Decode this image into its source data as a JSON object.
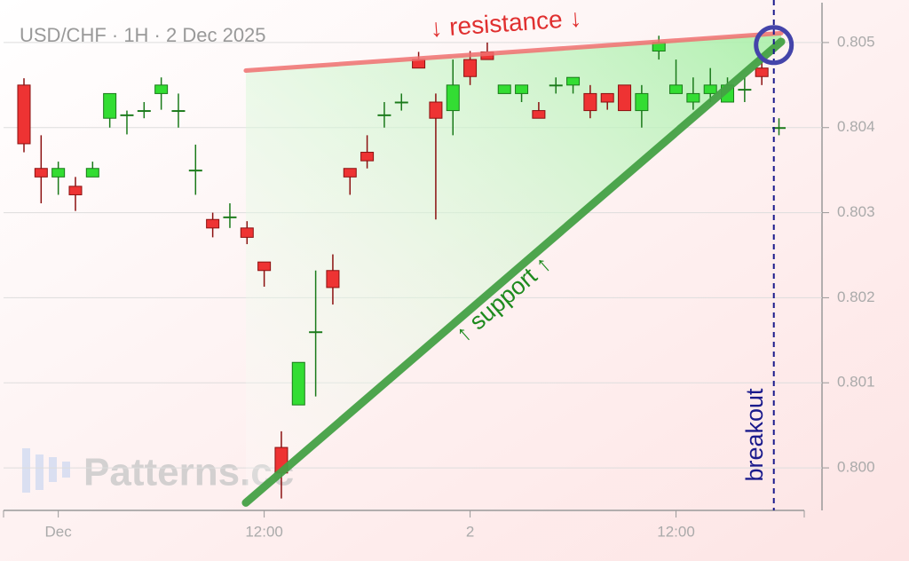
{
  "chart_data": {
    "type": "candlestick",
    "title": "USD/CHF · 1H · 2 Dec 2025",
    "watermark": "Patterns.cc",
    "categories": [
      null,
      null,
      "Dec",
      null,
      null,
      null,
      null,
      null,
      null,
      null,
      null,
      null,
      null,
      null,
      "12:00",
      null,
      null,
      null,
      null,
      null,
      null,
      null,
      null,
      null,
      null,
      null,
      "2",
      null,
      null,
      null,
      null,
      null,
      null,
      null,
      null,
      null,
      null,
      null,
      "12:00",
      null,
      null,
      null,
      null,
      null,
      null
    ],
    "open": [
      0.8045,
      0.80352,
      0.80342,
      0.80331,
      0.80342,
      0.80411,
      0.80414,
      0.80419,
      0.8044,
      0.80419,
      0.80349,
      0.80292,
      0.80294,
      0.80282,
      0.80242,
      0.80024,
      0.80074,
      0.80159,
      0.80232,
      0.80352,
      0.80371,
      0.80414,
      0.80429,
      0.8048,
      0.8043,
      0.8042,
      0.8048,
      0.80489,
      0.8044,
      0.8044,
      0.8042,
      0.80449,
      0.8045,
      0.8044,
      0.8044,
      0.8045,
      0.8042,
      0.8049,
      0.8044,
      0.8043,
      0.8044,
      0.8043,
      0.80444,
      0.8047,
      0.80399
    ],
    "high": [
      0.80458,
      0.80391,
      0.8036,
      0.80342,
      0.8036,
      0.8044,
      0.8042,
      0.8043,
      0.80459,
      0.8044,
      0.8038,
      0.803,
      0.80311,
      0.8029,
      0.80242,
      0.80043,
      0.80124,
      0.80232,
      0.80251,
      0.80352,
      0.80391,
      0.8043,
      0.8044,
      0.80489,
      0.8044,
      0.8048,
      0.8049,
      0.805,
      0.8045,
      0.8045,
      0.8043,
      0.80459,
      0.80459,
      0.8045,
      0.8044,
      0.8045,
      0.8045,
      0.80508,
      0.8048,
      0.80459,
      0.8047,
      0.80459,
      0.80459,
      0.8048,
      0.80411
    ],
    "low": [
      0.80371,
      0.80311,
      0.80321,
      0.80302,
      0.80342,
      0.804,
      0.80392,
      0.80411,
      0.80421,
      0.804,
      0.80321,
      0.80271,
      0.80282,
      0.80263,
      0.80213,
      0.79964,
      0.80074,
      0.80084,
      0.80192,
      0.80321,
      0.80352,
      0.804,
      0.8042,
      0.8047,
      0.80292,
      0.80391,
      0.8045,
      0.8048,
      0.8044,
      0.8043,
      0.80411,
      0.8044,
      0.8044,
      0.80411,
      0.80421,
      0.8042,
      0.804,
      0.8048,
      0.8044,
      0.80421,
      0.8043,
      0.8043,
      0.8043,
      0.8045,
      0.80391
    ],
    "close": [
      0.80381,
      0.80342,
      0.80352,
      0.80321,
      0.80352,
      0.8044,
      0.80415,
      0.8042,
      0.8045,
      0.8042,
      0.8035,
      0.80282,
      0.80295,
      0.80271,
      0.80232,
      0.79994,
      0.80124,
      0.8016,
      0.80212,
      0.80342,
      0.80361,
      0.80415,
      0.8043,
      0.8047,
      0.80411,
      0.8045,
      0.8046,
      0.8048,
      0.8045,
      0.8045,
      0.80411,
      0.8045,
      0.80459,
      0.8042,
      0.8043,
      0.8042,
      0.8044,
      0.805,
      0.8045,
      0.8044,
      0.8045,
      0.8045,
      0.80445,
      0.8046,
      0.804
    ],
    "up_color": "#33dd33",
    "down_color": "#ee3333",
    "ylim": [
      0.7995,
      0.8055
    ],
    "yticks": [
      {
        "value": 0.8,
        "label": "0.800"
      },
      0.801,
      0.802,
      0.803,
      0.804,
      0.805
    ],
    "grid": true,
    "lines": [
      {
        "name": "↓ resistance ↓",
        "color": "#f07070",
        "x": [
          12.93,
          44.13
        ],
        "y": [
          0.80467,
          0.80511
        ]
      },
      {
        "name": "↑ support ↑",
        "color": "#44a044",
        "x": [
          12.93,
          44.13
        ],
        "y": [
          0.79959,
          0.80501
        ]
      }
    ],
    "breakout": {
      "label": "breakout",
      "x": 43.7,
      "y": 0.80497,
      "color": "#1a1a8c"
    }
  }
}
